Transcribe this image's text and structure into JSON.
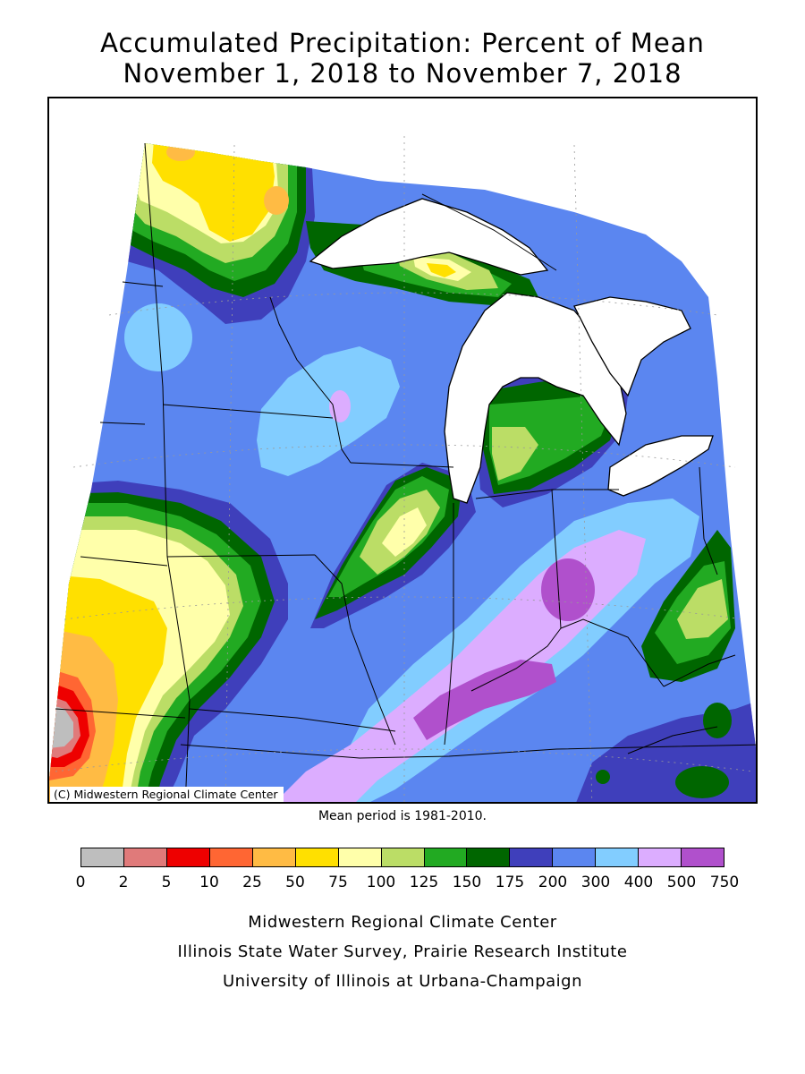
{
  "title_line1": "Accumulated Precipitation: Percent of Mean",
  "title_line2": "November 1, 2018 to November 7, 2018",
  "copyright": "(C) Midwestern Regional Climate Center",
  "mean_period": "Mean period is 1981-2010.",
  "legend": {
    "colors": [
      "#bebebe",
      "#e07a7a",
      "#ee0000",
      "#ff6633",
      "#ffbb44",
      "#ffe000",
      "#ffffaa",
      "#bbdd66",
      "#22aa22",
      "#006600",
      "#3f3fbb",
      "#5b86f0",
      "#82cdff",
      "#dcadff",
      "#b050cc"
    ],
    "labels": [
      "0",
      "2",
      "5",
      "10",
      "25",
      "50",
      "75",
      "100",
      "125",
      "150",
      "175",
      "200",
      "300",
      "400",
      "500",
      "750"
    ]
  },
  "credits": {
    "line1": "Midwestern Regional Climate Center",
    "line2": "Illinois State Water Survey, Prairie Research Institute",
    "line3": "University of Illinois at Urbana-Champaign"
  }
}
